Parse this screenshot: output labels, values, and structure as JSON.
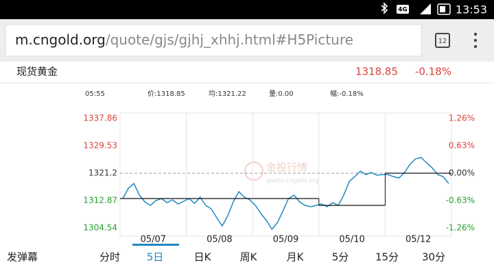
{
  "status_bar": {
    "network": "4G",
    "time": "13:53"
  },
  "address_bar": {
    "domain": "m.cngold.org",
    "path": "/quote/gjs/gjhj_xhhj.html#H5Picture",
    "tabs": "12"
  },
  "quote": {
    "name": "现货黄金",
    "price": "1318.85",
    "change": "-0.18%"
  },
  "info": {
    "time": "05:55",
    "price": "价:1318.85",
    "avg": "均:1321.22",
    "volume": "量:0.00",
    "range": "幅:-0.18%"
  },
  "watermark": {
    "title": "金投行情",
    "url": "quote.cngold.org"
  },
  "chart_data": {
    "type": "line",
    "categories": [
      "05/07",
      "05/08",
      "05/09",
      "05/10",
      "05/12"
    ],
    "series": [
      {
        "color": "#1f88c0",
        "values": [
          [
            1313.5,
            1316.62,
            1318.08,
            1314.54,
            1312.45,
            1311.41,
            1312.87,
            1313.5,
            1312.25,
            1313.08,
            1311.83,
            1312.66
          ],
          [
            1313.5,
            1312.04,
            1313.91,
            1311.41,
            1310.37,
            1307.66,
            1305.16,
            1308.29,
            1312.45,
            1315.58,
            1313.91,
            1313.08
          ],
          [
            1311.41,
            1308.91,
            1306.83,
            1304.12,
            1306.21,
            1309.75,
            1313.5,
            1314.54,
            1312.45,
            1311.41,
            1311.0,
            1311.41
          ],
          [
            1311.83,
            1311.0,
            1312.25,
            1311.41,
            1314.54,
            1318.7,
            1320.16,
            1321.82,
            1320.78,
            1321.41,
            1320.58,
            1320.78
          ],
          [
            1320.78,
            1320.16,
            1319.74,
            1321.41,
            1323.91,
            1325.57,
            1325.99,
            1324.32,
            1322.87,
            1320.78,
            1320.16,
            1318.08
          ]
        ]
      },
      {
        "color": "#111111",
        "step": true,
        "values": [
          1313.5,
          1313.5,
          1313.5,
          1311.41,
          1321.2
        ]
      }
    ],
    "base": 1321.2,
    "ylim": [
      1302.04,
      1339.53
    ],
    "yticks": [
      1337.86,
      1329.53,
      1321.2,
      1312.87,
      1304.54
    ],
    "y2lim": [
      -1.45,
      1.39
    ],
    "y2ticks": [
      {
        "value": 1.26,
        "label": "1.26%"
      },
      {
        "value": 0.63,
        "label": "0.63%"
      },
      {
        "value": 0,
        "label": "0.00%"
      },
      {
        "value": -0.63,
        "label": "-0.63%"
      },
      {
        "value": -1.26,
        "label": "-1.26%"
      }
    ],
    "up_color": "#d9423c",
    "down_color": "#23a02b",
    "flat_color": "#333333"
  },
  "bottom_bar": {
    "danmaku": "发弹幕",
    "tabs": [
      "分时",
      "5日",
      "日K",
      "周K",
      "月K",
      "5分",
      "15分",
      "30分"
    ],
    "selected": 1
  }
}
